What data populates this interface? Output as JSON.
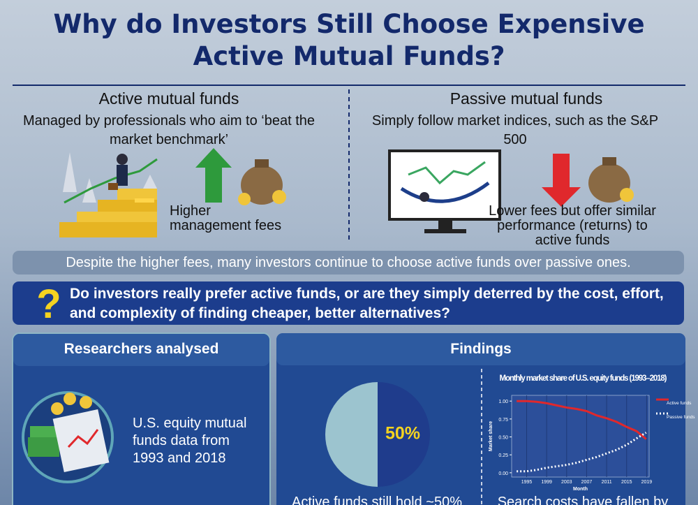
{
  "header": {
    "title": "Why do Investors Still Choose Expensive Active Mutual Funds?"
  },
  "active": {
    "heading": "Active mutual funds",
    "description": "Managed by professionals who aim to ‘beat the market benchmark’",
    "fee_note": "Higher management fees"
  },
  "passive": {
    "heading": "Passive mutual funds",
    "description": "Simply follow market indices, such as the S&P 500",
    "fee_note": "Lower fees but offer similar performance (returns) to active funds"
  },
  "banner": "Despite the higher fees, many investors continue to choose active funds over passive ones.",
  "question": {
    "mark": "?",
    "text": "Do investors really prefer active funds, or are they simply deterred by the cost, effort, and complexity of finding cheaper, better alternatives?"
  },
  "researchers": {
    "title": "Researchers analysed",
    "text": "U.S. equity mutual funds data from 1993 and 2018"
  },
  "findings": {
    "title": "Findings",
    "pie_caption": "Active funds still hold ~50%",
    "chart_caption": "Search costs have fallen by"
  },
  "chart_data": [
    {
      "type": "pie",
      "values": [
        50,
        50
      ],
      "value_labels": [
        "50%",
        null
      ],
      "colors": [
        "#1f3c8c",
        "#9cc4cf"
      ]
    },
    {
      "type": "line",
      "title": "Monthly market share of U.S. equity funds (1993–2018)",
      "x_label": "Month",
      "y_label": "Market share",
      "x": [
        1993,
        1995,
        1997,
        1999,
        2001,
        2003,
        2005,
        2007,
        2009,
        2011,
        2013,
        2015,
        2017,
        2018.9
      ],
      "series": [
        {
          "name": "Active funds",
          "color": "#e0282c",
          "style": "solid",
          "values": [
            1.0,
            1.0,
            0.99,
            0.97,
            0.94,
            0.91,
            0.89,
            0.86,
            0.8,
            0.76,
            0.71,
            0.64,
            0.58,
            0.47
          ]
        },
        {
          "name": "Passive funds",
          "color": "#ffffff",
          "style": "dotted",
          "values": [
            0.02,
            0.02,
            0.04,
            0.07,
            0.09,
            0.11,
            0.14,
            0.18,
            0.22,
            0.27,
            0.32,
            0.39,
            0.48,
            0.56
          ]
        }
      ],
      "xlim": [
        1992,
        2019.5
      ],
      "xticks": [
        1995,
        1999,
        2003,
        2007,
        2011,
        2015,
        2019
      ],
      "ylim": [
        -0.06,
        1.08
      ],
      "yticks": [
        {
          "value": 0,
          "label": "0.00"
        },
        {
          "value": 0.25,
          "label": "0.25"
        },
        {
          "value": 0.5,
          "label": "0.50"
        },
        {
          "value": 0.75,
          "label": "0.75"
        },
        {
          "value": 1,
          "label": "1.00"
        }
      ],
      "grid": true,
      "legend": "right"
    }
  ]
}
